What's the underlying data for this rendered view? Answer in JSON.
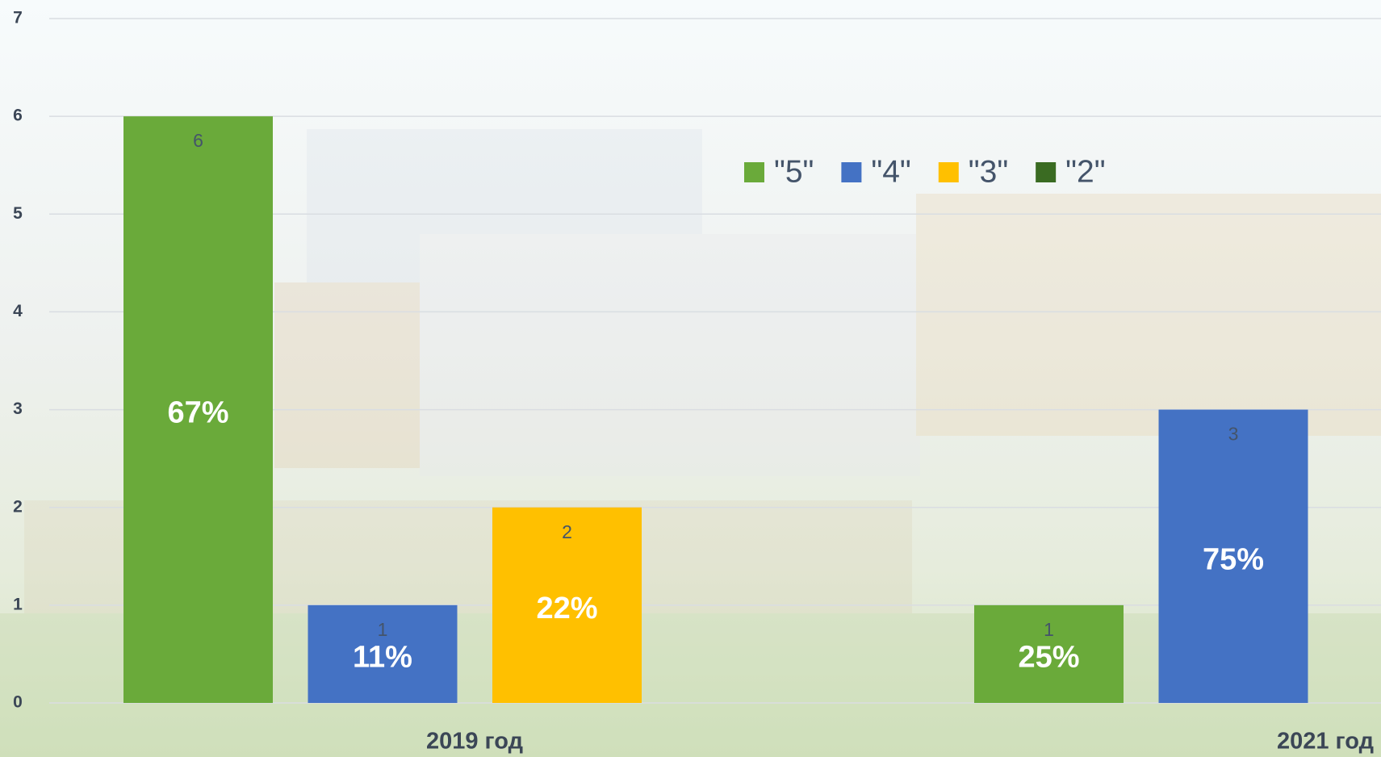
{
  "chart_data": {
    "type": "bar",
    "categories": [
      "2019 год",
      "2021 год"
    ],
    "series": [
      {
        "name": "\"5\"",
        "color": "#6aaa3a",
        "values": [
          6,
          1
        ],
        "percent_labels": [
          "67%",
          "25%"
        ]
      },
      {
        "name": "\"4\"",
        "color": "#4472c4",
        "values": [
          1,
          3
        ],
        "percent_labels": [
          "11%",
          "75%"
        ]
      },
      {
        "name": "\"3\"",
        "color": "#ffc000",
        "values": [
          2,
          null
        ],
        "percent_labels": [
          "22%",
          null
        ]
      },
      {
        "name": "\"2\"",
        "color": "#3a6b22",
        "values": [
          null,
          null
        ],
        "percent_labels": [
          null,
          null
        ]
      }
    ],
    "ylim": [
      0,
      7
    ],
    "yticks": [
      0,
      1,
      2,
      3,
      4,
      5,
      6,
      7
    ],
    "grid": true,
    "legend": "top"
  }
}
